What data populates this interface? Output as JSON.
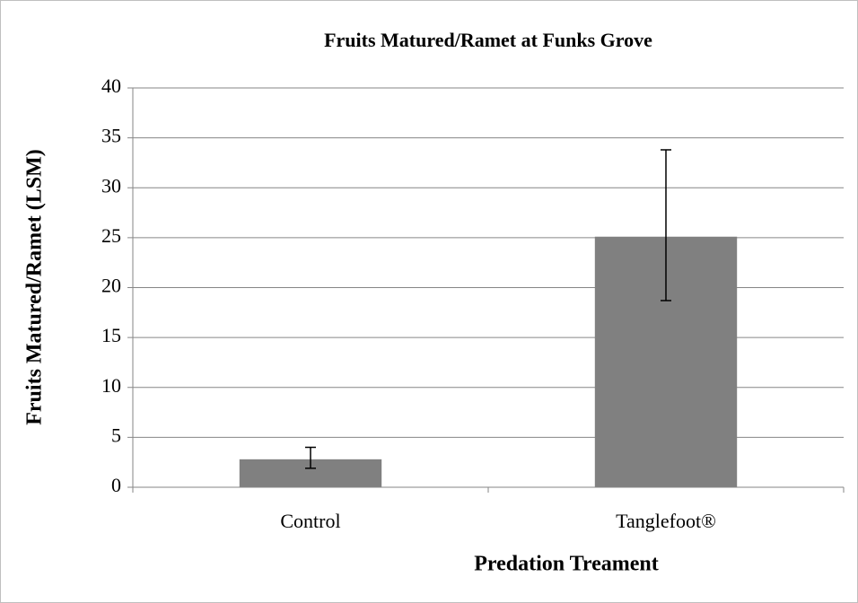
{
  "chart_data": {
    "type": "bar",
    "title": "Fruits Matured/Ramet at Funks Grove",
    "x_label": "Predation Treament",
    "y_label": "Fruits Matured/Ramet (LSM)",
    "categories": [
      "Control",
      "Tanglefoot®"
    ],
    "values": [
      2.8,
      25.1
    ],
    "error_minus": [
      0.9,
      6.4
    ],
    "error_plus": [
      1.2,
      8.7
    ],
    "color": "#808080",
    "ylim": [
      0,
      40
    ],
    "yticks": [
      0,
      5,
      10,
      15,
      20,
      25,
      30,
      35,
      40
    ],
    "grid": true
  }
}
